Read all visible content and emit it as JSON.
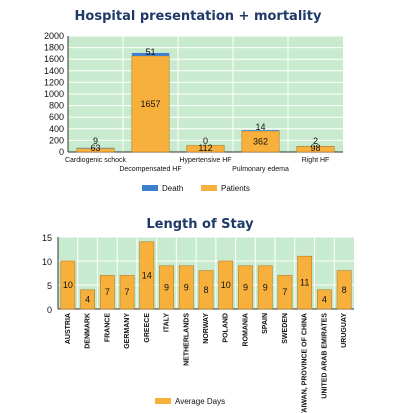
{
  "colors": {
    "patients": "#f7b03c",
    "patients_edge": "#b37d22",
    "death": "#3f7fd0",
    "plot_bg": "#c8ebcf",
    "grid": "#ffffff",
    "title": "#1f3a68"
  },
  "chart_data": [
    {
      "type": "bar",
      "stacked": true,
      "title": "Hospital presentation + mortality",
      "xlabel": "",
      "ylabel": "",
      "ylim": [
        0,
        2000
      ],
      "yticks": [
        0,
        200,
        400,
        600,
        800,
        1000,
        1200,
        1400,
        1600,
        1800,
        2000
      ],
      "grid": true,
      "legend_position": "bottom",
      "categories": [
        "Cardiogenic schock",
        "Decompensated HF",
        "Hypertensive HF",
        "Pulmonary edema",
        "Right HF"
      ],
      "series": [
        {
          "name": "Patients",
          "values": [
            63,
            1657,
            112,
            362,
            98
          ]
        },
        {
          "name": "Death",
          "values": [
            9,
            51,
            0,
            14,
            2
          ]
        }
      ],
      "data_labels": {
        "Patients": [
          "63",
          "1657",
          "112",
          "362",
          "98"
        ],
        "Death": [
          "9",
          "51",
          "0",
          "14",
          "2"
        ]
      }
    },
    {
      "type": "bar",
      "title": "Length of Stay",
      "xlabel": "",
      "ylabel": "",
      "ylim": [
        0,
        15
      ],
      "yticks": [
        0,
        5,
        10,
        15
      ],
      "grid": true,
      "legend_position": "bottom",
      "categories": [
        "AUSTRIA",
        "DENMARK",
        "FRANCE",
        "GERMANY",
        "GREECE",
        "ITALY",
        "NETHERLANDS",
        "NORWAY",
        "POLAND",
        "ROMANIA",
        "SPAIN",
        "SWEDEN",
        "TAIWAN, PROVINCE OF CHINA",
        "UNITED ARAB EMIRATES",
        "URUGUAY"
      ],
      "series": [
        {
          "name": "Average Days",
          "values": [
            10,
            4,
            7,
            7,
            14,
            9,
            9,
            8,
            10,
            9,
            9,
            7,
            11,
            4,
            8
          ]
        }
      ]
    }
  ]
}
